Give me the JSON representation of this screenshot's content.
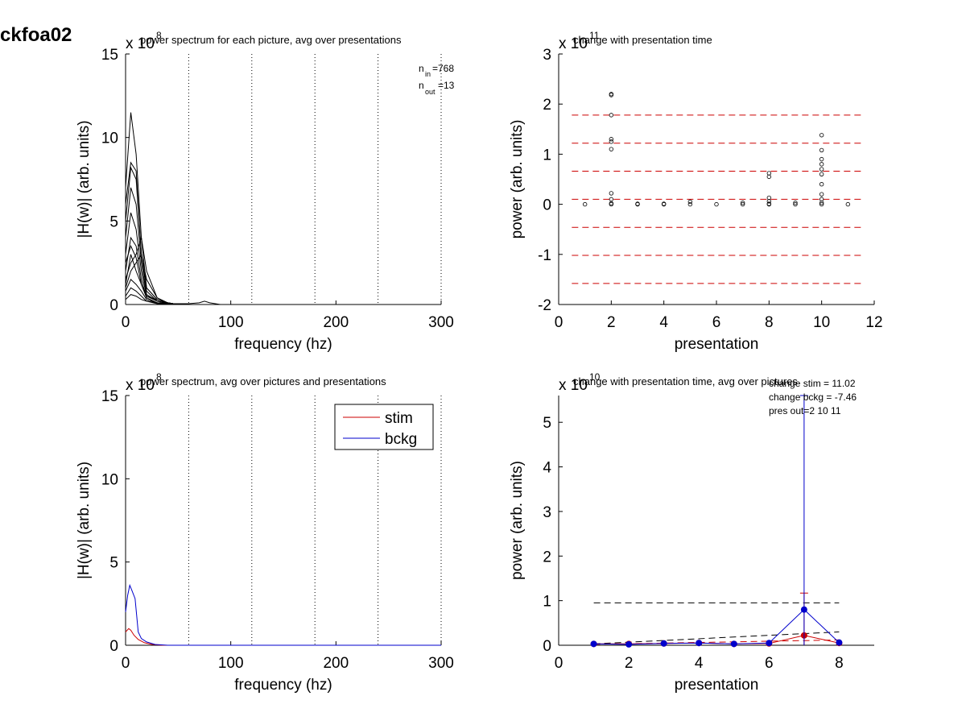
{
  "figure": {
    "label": "ckfoa02"
  },
  "chart_data": [
    {
      "id": "tl",
      "type": "line",
      "title": "power spectrum for each picture, avg over presentations",
      "xlabel": "frequency (hz)",
      "ylabel": "|H(w)| (arb. units)",
      "y_multiplier": "x 10",
      "y_exponent": "8",
      "xlim": [
        0,
        300
      ],
      "ylim": [
        0,
        15
      ],
      "xticks": [
        "0",
        "100",
        "200",
        "300"
      ],
      "yticks": [
        "0",
        "5",
        "10",
        "15"
      ],
      "vlines": [
        60,
        120,
        180,
        240,
        300
      ],
      "annotation": {
        "n_in_label": "n",
        "n_in_sub": "in",
        "n_in_value": "=768",
        "n_out_label": "n",
        "n_out_sub": "out",
        "n_out_value": "=13"
      },
      "series_color": "#000000",
      "series": [
        {
          "x": [
            0,
            5,
            10,
            15,
            20,
            30,
            40,
            50
          ],
          "y": [
            7,
            11.5,
            9,
            4,
            1,
            0.3,
            0.1,
            0
          ]
        },
        {
          "x": [
            0,
            5,
            10,
            15,
            20,
            30,
            40,
            50
          ],
          "y": [
            6,
            8.5,
            8,
            3,
            1,
            0.3,
            0.1,
            0
          ]
        },
        {
          "x": [
            0,
            5,
            10,
            15,
            20,
            30,
            40,
            50
          ],
          "y": [
            5,
            8.2,
            7.5,
            3,
            0.8,
            0.2,
            0.1,
            0
          ]
        },
        {
          "x": [
            0,
            5,
            10,
            15,
            20,
            30,
            40,
            50
          ],
          "y": [
            4,
            7,
            6,
            2.5,
            0.6,
            0.2,
            0.05,
            0
          ]
        },
        {
          "x": [
            0,
            5,
            10,
            15,
            20,
            30,
            40,
            50
          ],
          "y": [
            3,
            5.5,
            4.5,
            2,
            0.5,
            0.2,
            0.05,
            0
          ]
        },
        {
          "x": [
            0,
            5,
            10,
            15,
            20,
            30,
            40,
            50
          ],
          "y": [
            2,
            4,
            3.5,
            1.5,
            0.4,
            0.1,
            0.05,
            0
          ]
        },
        {
          "x": [
            0,
            5,
            10,
            15,
            20,
            30,
            40,
            50
          ],
          "y": [
            1.5,
            2.5,
            3,
            4,
            2,
            0.4,
            0.1,
            0
          ]
        },
        {
          "x": [
            0,
            5,
            10,
            15,
            20,
            30,
            40,
            50
          ],
          "y": [
            1,
            2,
            2.5,
            3,
            1.5,
            0.4,
            0.1,
            0
          ]
        },
        {
          "x": [
            0,
            5,
            10,
            15,
            20,
            30,
            40,
            50
          ],
          "y": [
            1.2,
            3,
            2,
            1.2,
            0.4,
            0.1,
            0,
            0
          ]
        },
        {
          "x": [
            0,
            5,
            10,
            15,
            20,
            30,
            40,
            50
          ],
          "y": [
            0.8,
            1.5,
            1.2,
            0.8,
            0.3,
            0.1,
            0,
            0
          ]
        },
        {
          "x": [
            0,
            5,
            10,
            15,
            20,
            30,
            40,
            50
          ],
          "y": [
            0.5,
            1,
            0.8,
            0.5,
            0.2,
            0.05,
            0,
            0
          ]
        },
        {
          "x": [
            0,
            5,
            10,
            15,
            20,
            30,
            40,
            50
          ],
          "y": [
            2.5,
            3.5,
            2.8,
            1.2,
            0.5,
            0.3,
            0.1,
            0
          ]
        },
        {
          "x": [
            0,
            5,
            10,
            15,
            20,
            30,
            40,
            50,
            60,
            70,
            75,
            80,
            90
          ],
          "y": [
            0.3,
            0.6,
            0.5,
            0.3,
            0.2,
            0.1,
            0.05,
            0.05,
            0.05,
            0.1,
            0.2,
            0.1,
            0
          ]
        }
      ]
    },
    {
      "id": "tr",
      "type": "scatter",
      "title": "change with presentation time",
      "xlabel": "presentation",
      "ylabel": "power (arb. units)",
      "y_multiplier": "x 10",
      "y_exponent": "11",
      "xlim": [
        0,
        12
      ],
      "ylim": [
        -2,
        3
      ],
      "xticks": [
        "0",
        "2",
        "4",
        "6",
        "8",
        "10",
        "12"
      ],
      "yticks": [
        "-2",
        "-1",
        "0",
        "1",
        "2",
        "3"
      ],
      "hlines": [
        1.78,
        1.22,
        0.66,
        0.1,
        -0.46,
        -1.02,
        -1.58
      ],
      "hline_xrange": [
        0.5,
        11.5
      ],
      "hline_color": "#cc0000",
      "points": [
        [
          1,
          0
        ],
        [
          2,
          2.2
        ],
        [
          2,
          2.18
        ],
        [
          2,
          1.78
        ],
        [
          2,
          1.3
        ],
        [
          2,
          1.25
        ],
        [
          2,
          1.1
        ],
        [
          2,
          0.22
        ],
        [
          2,
          0.1
        ],
        [
          2,
          0.02
        ],
        [
          2,
          0
        ],
        [
          3,
          0
        ],
        [
          3,
          0.01
        ],
        [
          4,
          0
        ],
        [
          4,
          0.01
        ],
        [
          5,
          0.05
        ],
        [
          5,
          0
        ],
        [
          6,
          0
        ],
        [
          7,
          0.03
        ],
        [
          7,
          0
        ],
        [
          8,
          0.62
        ],
        [
          8,
          0.55
        ],
        [
          8,
          0.13
        ],
        [
          8,
          0.06
        ],
        [
          8,
          0.01
        ],
        [
          8,
          0
        ],
        [
          9,
          0.03
        ],
        [
          9,
          0
        ],
        [
          10,
          1.38
        ],
        [
          10,
          1.08
        ],
        [
          10,
          0.9
        ],
        [
          10,
          0.8
        ],
        [
          10,
          0.7
        ],
        [
          10,
          0.6
        ],
        [
          10,
          0.4
        ],
        [
          10,
          0.2
        ],
        [
          10,
          0.1
        ],
        [
          10,
          0.03
        ],
        [
          10,
          0
        ],
        [
          11,
          0
        ]
      ]
    },
    {
      "id": "bl",
      "type": "line",
      "title": "power spectrum, avg over pictures and presentations",
      "xlabel": "frequency (hz)",
      "ylabel": "|H(w)| (arb. units)",
      "y_multiplier": "x 10",
      "y_exponent": "8",
      "xlim": [
        0,
        300
      ],
      "ylim": [
        0,
        15
      ],
      "xticks": [
        "0",
        "100",
        "200",
        "300"
      ],
      "yticks": [
        "0",
        "5",
        "10",
        "15"
      ],
      "vlines": [
        60,
        120,
        180,
        240,
        300
      ],
      "legend": {
        "position": "top-right",
        "entries": [
          "stim",
          "bckg"
        ]
      },
      "series": [
        {
          "name": "stim",
          "color": "#cc0000",
          "x": [
            0,
            3,
            5,
            8,
            12,
            18,
            25,
            35,
            50,
            300
          ],
          "y": [
            0.8,
            1.0,
            0.9,
            0.6,
            0.35,
            0.15,
            0.05,
            0,
            0,
            0
          ]
        },
        {
          "name": "bckg",
          "color": "#0000cc",
          "x": [
            0,
            2,
            4,
            6,
            9,
            12,
            15,
            20,
            28,
            40,
            300
          ],
          "y": [
            2.0,
            3.0,
            3.6,
            3.3,
            2.8,
            0.8,
            0.4,
            0.2,
            0.05,
            0,
            0
          ]
        }
      ]
    },
    {
      "id": "br",
      "type": "line",
      "title": "change with presentation time, avg over pictures",
      "xlabel": "presentation",
      "ylabel": "power (arb. units)",
      "y_multiplier": "x 10",
      "y_exponent": "10",
      "xlim": [
        0,
        9
      ],
      "ylim": [
        0,
        5.6
      ],
      "xticks": [
        "0",
        "2",
        "4",
        "6",
        "8"
      ],
      "yticks": [
        "0",
        "1",
        "2",
        "3",
        "4",
        "5"
      ],
      "annotations": [
        "change stim = 11.02",
        "change bckg = -7.46",
        "pres out=2 10 11"
      ],
      "x": [
        1,
        2,
        3,
        4,
        5,
        6,
        7,
        8
      ],
      "series": [
        {
          "name": "stim",
          "color": "#cc0000",
          "y": [
            0.03,
            0.03,
            0.04,
            0.05,
            0.03,
            0.04,
            0.22,
            0.05
          ],
          "err": [
            0,
            0,
            0,
            0,
            0,
            0,
            0.95,
            0
          ]
        },
        {
          "name": "bckg",
          "color": "#0000cc",
          "y": [
            0.03,
            0.02,
            0.04,
            0.05,
            0.03,
            0.05,
            0.8,
            0.06
          ],
          "err": [
            0,
            0,
            0,
            0,
            0,
            0,
            5.0,
            0
          ]
        }
      ],
      "dashed_fits": [
        {
          "color": "#000000",
          "x": [
            1,
            8
          ],
          "y": [
            0.95,
            0.95
          ]
        },
        {
          "color": "#000000",
          "x": [
            1,
            8
          ],
          "y": [
            0.03,
            0.3
          ]
        },
        {
          "color": "#cc0000",
          "x": [
            1,
            8
          ],
          "y": [
            0.02,
            0.12
          ]
        }
      ]
    }
  ]
}
